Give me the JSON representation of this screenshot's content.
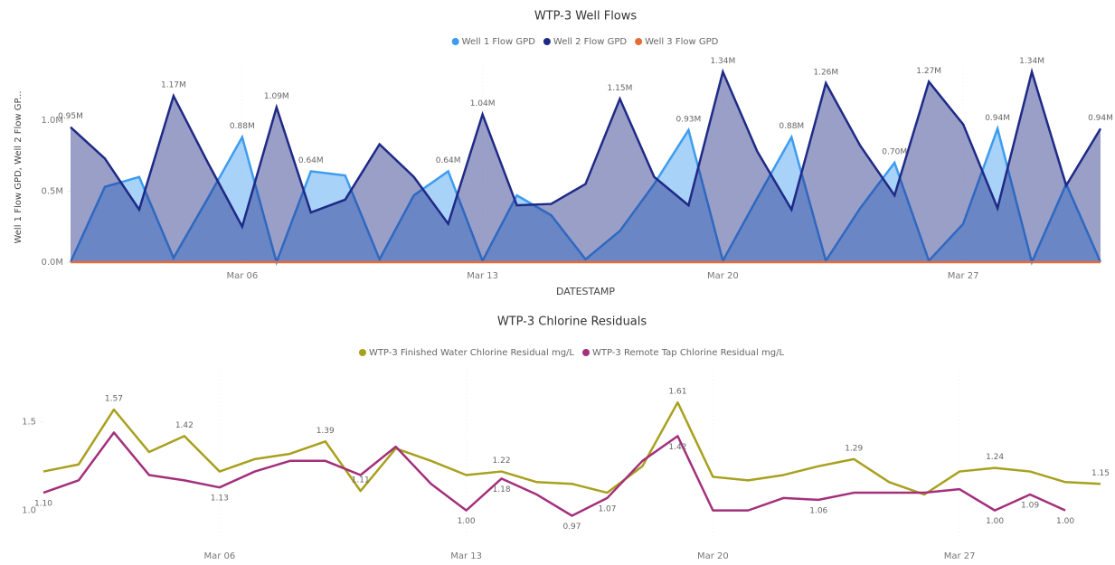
{
  "chart_data": [
    {
      "type": "area",
      "title": "WTP-3 Well Flows",
      "x_label": "DATESTAMP",
      "y_label": "Well 1 Flow GPD, Well 2 Flow GP...",
      "categories": [
        "Mar 01",
        "Mar 02",
        "Mar 03",
        "Mar 04",
        "Mar 05",
        "Mar 06",
        "Mar 07",
        "Mar 08",
        "Mar 09",
        "Mar 10",
        "Mar 11",
        "Mar 12",
        "Mar 13",
        "Mar 14",
        "Mar 15",
        "Mar 16",
        "Mar 17",
        "Mar 18",
        "Mar 19",
        "Mar 20",
        "Mar 21",
        "Mar 22",
        "Mar 23",
        "Mar 24",
        "Mar 25",
        "Mar 26",
        "Mar 27",
        "Mar 28",
        "Mar 29",
        "Mar 30",
        "Mar 31"
      ],
      "xticks": [
        "Mar 06",
        "Mar 13",
        "Mar 20",
        "Mar 27"
      ],
      "ylim": [
        0,
        1400000
      ],
      "yticks": [
        {
          "value": 0,
          "label": "0.0M"
        },
        {
          "value": 500000,
          "label": "0.5M"
        },
        {
          "value": 1000000,
          "label": "1.0M"
        }
      ],
      "series": [
        {
          "name": "Well 1 Flow GPD",
          "color": "#3d9cf0",
          "values": [
            0,
            530000,
            600000,
            30000,
            450000,
            880000,
            0,
            640000,
            610000,
            20000,
            470000,
            640000,
            10000,
            470000,
            330000,
            20000,
            220000,
            550000,
            930000,
            10000,
            450000,
            880000,
            10000,
            380000,
            700000,
            10000,
            270000,
            940000,
            0,
            550000,
            0
          ],
          "value_labels": [
            null,
            null,
            null,
            null,
            null,
            "0.88M",
            null,
            "0.64M",
            null,
            null,
            null,
            "0.64M",
            null,
            null,
            null,
            null,
            null,
            null,
            "0.93M",
            null,
            null,
            "0.88M",
            null,
            null,
            "0.70M",
            null,
            null,
            "0.94M",
            null,
            null,
            null
          ]
        },
        {
          "name": "Well 2 Flow GPD",
          "color": "#1e2a86",
          "values": [
            950000,
            730000,
            370000,
            1170000,
            700000,
            250000,
            1090000,
            350000,
            440000,
            830000,
            600000,
            270000,
            1040000,
            400000,
            410000,
            550000,
            1150000,
            600000,
            400000,
            1340000,
            780000,
            370000,
            1260000,
            820000,
            470000,
            1270000,
            970000,
            380000,
            1340000,
            540000,
            940000
          ],
          "value_labels": [
            "0.95M",
            null,
            null,
            "1.17M",
            null,
            null,
            "1.09M",
            null,
            null,
            null,
            null,
            null,
            "1.04M",
            null,
            null,
            null,
            "1.15M",
            null,
            null,
            "1.34M",
            null,
            null,
            "1.26M",
            null,
            null,
            "1.27M",
            null,
            null,
            "1.34M",
            null,
            "0.94M"
          ]
        },
        {
          "name": "Well 3 Flow GPD",
          "color": "#e66c37",
          "values": [
            0,
            0,
            0,
            0,
            0,
            0,
            0,
            0,
            0,
            0,
            0,
            0,
            0,
            0,
            0,
            0,
            0,
            0,
            0,
            0,
            0,
            0,
            0,
            0,
            0,
            0,
            0,
            0,
            0,
            0,
            0
          ]
        }
      ]
    },
    {
      "type": "line",
      "title": "WTP-3 Chlorine Residuals",
      "categories": [
        "Mar 01",
        "Mar 02",
        "Mar 03",
        "Mar 04",
        "Mar 05",
        "Mar 06",
        "Mar 07",
        "Mar 08",
        "Mar 09",
        "Mar 10",
        "Mar 11",
        "Mar 12",
        "Mar 13",
        "Mar 14",
        "Mar 15",
        "Mar 16",
        "Mar 17",
        "Mar 18",
        "Mar 19",
        "Mar 20",
        "Mar 21",
        "Mar 22",
        "Mar 23",
        "Mar 24",
        "Mar 25",
        "Mar 26",
        "Mar 27",
        "Mar 28",
        "Mar 29",
        "Mar 30",
        "Mar 31"
      ],
      "xticks": [
        "Mar 06",
        "Mar 13",
        "Mar 20",
        "Mar 27"
      ],
      "ylim": [
        0.85,
        1.8
      ],
      "yticks": [
        {
          "value": 1,
          "label": "1.0"
        },
        {
          "value": 1.5,
          "label": "1.5"
        }
      ],
      "series": [
        {
          "name": "WTP-3 Finished Water Chlorine Residual mg/L",
          "color": "#a8a01e",
          "values": [
            1.22,
            1.26,
            1.57,
            1.33,
            1.42,
            1.22,
            1.29,
            1.32,
            1.39,
            1.11,
            1.35,
            1.28,
            1.2,
            1.22,
            1.16,
            1.15,
            1.1,
            1.25,
            1.61,
            1.19,
            1.17,
            1.2,
            1.25,
            1.29,
            1.16,
            1.09,
            1.22,
            1.24,
            1.22,
            1.16,
            1.15
          ],
          "value_labels": [
            null,
            null,
            "1.57",
            null,
            "1.42",
            null,
            null,
            null,
            "1.39",
            "1.11",
            null,
            null,
            null,
            "1.22",
            null,
            null,
            null,
            null,
            "1.61",
            null,
            null,
            null,
            null,
            "1.29",
            null,
            null,
            null,
            "1.24",
            null,
            null,
            "1.15"
          ]
        },
        {
          "name": "WTP-3 Remote Tap Chlorine Residual mg/L",
          "color": "#a3307a",
          "values": [
            1.1,
            1.17,
            1.44,
            1.2,
            1.17,
            1.13,
            1.22,
            1.28,
            1.28,
            1.2,
            1.36,
            1.15,
            1.0,
            1.18,
            1.09,
            0.97,
            1.07,
            1.28,
            1.42,
            1.0,
            1.0,
            1.07,
            1.06,
            1.1,
            1.1,
            1.1,
            1.12,
            1.0,
            1.09,
            1.0,
            null
          ],
          "value_labels": [
            "1.10",
            null,
            null,
            null,
            null,
            "1.13",
            null,
            null,
            null,
            null,
            null,
            null,
            "1.00",
            "1.18",
            null,
            "0.97",
            "1.07",
            null,
            "1.42",
            null,
            null,
            null,
            "1.06",
            null,
            null,
            null,
            null,
            "1.00",
            "1.09",
            "1.00",
            null
          ]
        }
      ]
    }
  ]
}
